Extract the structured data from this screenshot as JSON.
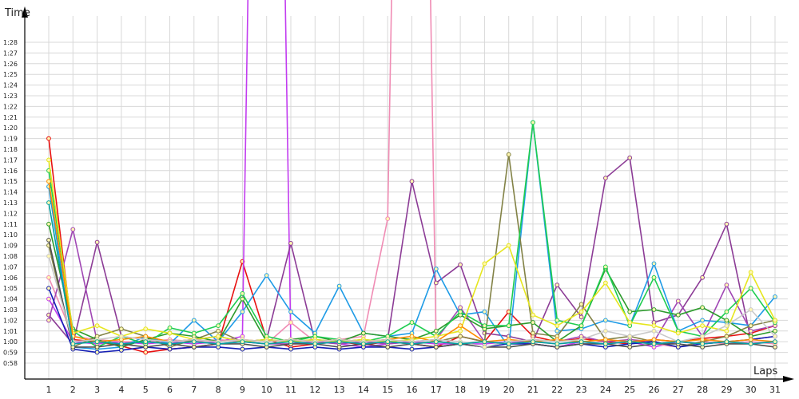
{
  "chart_data": {
    "type": "line",
    "title": "",
    "xlabel": "Laps",
    "ylabel": "Time",
    "grid": true,
    "legend": "none",
    "x": [
      1,
      2,
      3,
      4,
      5,
      6,
      7,
      8,
      9,
      10,
      11,
      12,
      13,
      14,
      15,
      16,
      17,
      18,
      19,
      20,
      21,
      22,
      23,
      24,
      25,
      26,
      27,
      28,
      29,
      30,
      31
    ],
    "y_ticks": [
      "0:58",
      "0:59",
      "1:00",
      "1:01",
      "1:02",
      "1:03",
      "1:04",
      "1:05",
      "1:06",
      "1:07",
      "1:08",
      "1:09",
      "1:10",
      "1:11",
      "1:12",
      "1:13",
      "1:14",
      "1:15",
      "1:16",
      "1:17",
      "1:18",
      "1:19",
      "1:20",
      "1:21",
      "1:22",
      "1:23",
      "1:24",
      "1:25",
      "1:26",
      "1:27",
      "1:28"
    ],
    "ylim_seconds": [
      57,
      89
    ],
    "y_unit": "seconds",
    "series": [
      {
        "color": "#e81010",
        "values": [
          79.0,
          60.2,
          60.0,
          59.6,
          59.0,
          59.3,
          59.5,
          59.8,
          67.5,
          60.2,
          59.5,
          59.8,
          60.0,
          59.7,
          60.0,
          59.8,
          59.5,
          60.5,
          60.0,
          62.8,
          60.5,
          60.0,
          60.3,
          60.0,
          59.8,
          60.2,
          60.0,
          60.3,
          60.5,
          60.8,
          61.5
        ]
      },
      {
        "color": "#c23cf0",
        "values": [
          64.0,
          60.0,
          59.8,
          60.0,
          59.8,
          60.0,
          59.8,
          60.0,
          60.5,
          200.0,
          59.8,
          60.0,
          59.8,
          59.5,
          59.8,
          60.0,
          59.8,
          59.8,
          59.8,
          60.0,
          59.8,
          59.5,
          60.0,
          59.8,
          60.0,
          59.5,
          60.0,
          59.8,
          60.0,
          59.8,
          60.0
        ]
      },
      {
        "color": "#f08cb4",
        "values": [
          66.0,
          60.5,
          60.2,
          60.0,
          60.0,
          60.2,
          60.0,
          60.2,
          60.0,
          59.8,
          61.8,
          60.0,
          60.2,
          60.5,
          71.5,
          200.0,
          60.0,
          59.8,
          60.0,
          59.8,
          60.0,
          59.8,
          60.0,
          59.8,
          60.0,
          59.8,
          59.5,
          60.0,
          59.8,
          60.0,
          59.8
        ]
      },
      {
        "color": "#8c3c96",
        "values": [
          62.5,
          59.8,
          69.3,
          60.5,
          60.2,
          60.0,
          60.2,
          60.5,
          60.0,
          60.2,
          69.2,
          60.0,
          60.2,
          60.0,
          60.2,
          75.0,
          65.5,
          67.2,
          60.8,
          60.5,
          60.0,
          65.3,
          62.3,
          75.3,
          77.2,
          61.8,
          62.5,
          66.0,
          71.0,
          60.2,
          60.5
        ]
      },
      {
        "color": "#a046b4",
        "values": [
          62.0,
          70.5,
          60.0,
          59.8,
          60.0,
          59.8,
          60.0,
          59.8,
          60.0,
          59.8,
          59.8,
          60.0,
          59.8,
          60.0,
          59.8,
          60.0,
          60.2,
          63.2,
          60.0,
          59.8,
          60.2,
          60.0,
          60.5,
          60.0,
          60.2,
          60.0,
          63.8,
          60.5,
          65.3,
          61.0,
          61.5
        ]
      },
      {
        "color": "#1e9be6",
        "values": [
          74.5,
          59.5,
          59.3,
          59.5,
          60.5,
          59.8,
          62.0,
          60.0,
          62.8,
          66.2,
          62.8,
          60.8,
          65.2,
          60.8,
          60.5,
          60.8,
          66.8,
          62.5,
          62.8,
          59.5,
          80.5,
          61.0,
          61.2,
          62.0,
          61.5,
          67.3,
          61.0,
          62.0,
          61.8,
          61.5,
          64.2
        ]
      },
      {
        "color": "#828246",
        "values": [
          69.0,
          59.5,
          60.5,
          61.2,
          60.5,
          59.5,
          60.2,
          61.0,
          60.0,
          60.2,
          60.0,
          60.2,
          60.0,
          60.2,
          60.0,
          59.8,
          60.0,
          60.5,
          60.0,
          77.5,
          60.8,
          60.5,
          63.5,
          60.2,
          60.5,
          60.0,
          59.5,
          60.0,
          60.5,
          61.5,
          62.0
        ]
      },
      {
        "color": "#2d9b2d",
        "values": [
          71.0,
          61.2,
          60.2,
          59.5,
          60.2,
          60.8,
          60.5,
          60.0,
          64.0,
          60.0,
          60.2,
          60.5,
          60.0,
          60.8,
          60.5,
          60.2,
          61.0,
          62.5,
          61.2,
          61.5,
          61.8,
          60.0,
          61.5,
          66.8,
          62.8,
          63.0,
          62.5,
          63.2,
          62.0,
          60.5,
          61.0
        ]
      },
      {
        "color": "#1ecd50",
        "values": [
          76.0,
          61.0,
          59.5,
          60.5,
          59.8,
          61.3,
          60.8,
          61.5,
          64.5,
          60.5,
          60.0,
          60.5,
          60.2,
          60.0,
          60.5,
          61.8,
          60.5,
          62.8,
          61.5,
          61.5,
          80.5,
          62.0,
          61.5,
          67.0,
          61.5,
          66.0,
          61.0,
          60.5,
          62.8,
          65.0,
          61.8
        ]
      },
      {
        "color": "#e6e61e",
        "values": [
          77.0,
          60.8,
          61.5,
          60.5,
          61.2,
          60.8,
          60.2,
          60.5,
          60.0,
          60.2,
          60.0,
          60.2,
          60.0,
          60.2,
          60.0,
          60.2,
          60.5,
          61.0,
          67.3,
          69.0,
          62.5,
          61.5,
          62.8,
          65.5,
          61.8,
          61.5,
          60.8,
          61.5,
          61.0,
          66.5,
          62.0
        ]
      },
      {
        "color": "#141eb4",
        "values": [
          65.0,
          59.3,
          59.0,
          59.2,
          59.5,
          59.3,
          59.5,
          59.5,
          59.3,
          59.5,
          59.3,
          59.5,
          59.3,
          59.5,
          59.5,
          59.3,
          59.5,
          59.8,
          59.5,
          59.8,
          59.8,
          59.5,
          59.8,
          59.5,
          59.8,
          60.0,
          59.5,
          59.8,
          60.0,
          60.2,
          60.5
        ]
      },
      {
        "color": "#505050",
        "values": [
          69.5,
          59.5,
          59.5,
          59.8,
          59.5,
          59.8,
          59.5,
          59.8,
          59.8,
          59.5,
          59.8,
          59.8,
          59.5,
          59.8,
          59.5,
          59.8,
          59.5,
          59.8,
          59.5,
          59.5,
          59.8,
          59.5,
          59.8,
          59.8,
          59.5,
          59.8,
          59.8,
          59.5,
          59.8,
          59.8,
          59.5
        ]
      },
      {
        "color": "#ff8c00",
        "values": [
          75.0,
          60.5,
          60.0,
          60.2,
          60.5,
          60.0,
          60.2,
          60.0,
          60.2,
          60.0,
          60.2,
          60.0,
          60.2,
          60.0,
          60.2,
          60.5,
          60.0,
          61.5,
          60.0,
          60.2,
          60.0,
          60.2,
          60.0,
          60.2,
          60.0,
          60.2,
          60.0,
          60.2,
          60.0,
          60.2,
          60.0
        ]
      },
      {
        "color": "#c8c8c8",
        "values": [
          68.0,
          60.0,
          60.2,
          60.5,
          60.2,
          60.0,
          60.2,
          60.0,
          60.2,
          60.0,
          60.2,
          60.0,
          60.2,
          60.0,
          60.2,
          60.0,
          60.2,
          60.0,
          59.5,
          60.0,
          60.2,
          60.0,
          60.2,
          61.0,
          60.5,
          61.0,
          60.0,
          60.5,
          61.5,
          63.0,
          60.5
        ]
      },
      {
        "color": "#00a0a0",
        "values": [
          73.0,
          59.8,
          60.0,
          59.8,
          60.0,
          59.8,
          60.0,
          59.8,
          60.0,
          59.8,
          60.0,
          59.8,
          60.0,
          59.8,
          60.0,
          59.8,
          60.0,
          59.8,
          60.0,
          59.8,
          60.0,
          59.8,
          60.0,
          59.8,
          60.0,
          59.8,
          60.0,
          59.8,
          60.0,
          59.8,
          60.0
        ]
      }
    ]
  }
}
